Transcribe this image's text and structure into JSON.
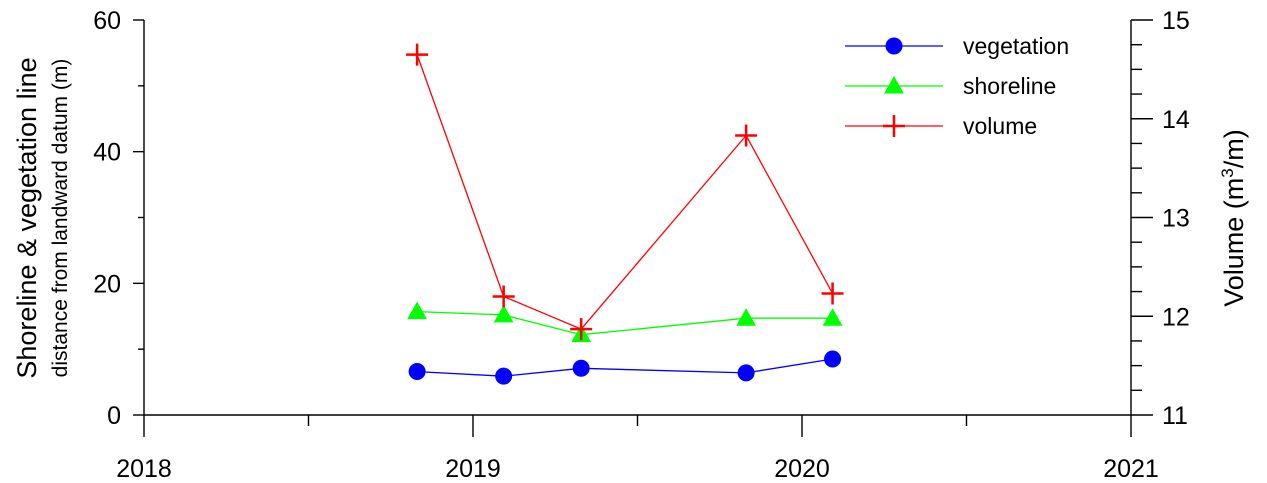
{
  "chart_data": {
    "type": "line",
    "x_axis": {
      "ticks": [
        2018,
        2019,
        2020,
        2021
      ],
      "minor_ticks": [
        2018.5,
        2019.5,
        2020.5
      ],
      "range": [
        2018,
        2021
      ]
    },
    "y_left": {
      "label": "Shoreline & vegetation line",
      "sublabel": "distance from landward datum (m)",
      "range": [
        0,
        60
      ],
      "ticks": [
        0,
        20,
        40,
        60
      ]
    },
    "y_right": {
      "label_prefix": "Volume (m",
      "label_sup": "3",
      "label_suffix": "/m)",
      "range": [
        11,
        15
      ],
      "ticks": [
        11,
        12,
        13,
        14,
        15
      ]
    },
    "legend_position": "top-right",
    "series": [
      {
        "name": "vegetation",
        "axis": "left",
        "color": "#0000ff",
        "marker": "circle",
        "x": [
          "2018-10-31",
          "2019-02-04",
          "2019-05-01",
          "2019-10-31",
          "2020-02-04"
        ],
        "y": [
          6.6,
          5.9,
          7.1,
          6.4,
          8.5
        ]
      },
      {
        "name": "shoreline",
        "axis": "left",
        "color": "#00ff00",
        "marker": "triangle",
        "x": [
          "2018-10-31",
          "2019-02-04",
          "2019-05-01",
          "2019-10-31",
          "2020-02-04"
        ],
        "y": [
          15.7,
          15.2,
          12.2,
          14.7,
          14.7
        ]
      },
      {
        "name": "volume",
        "axis": "right",
        "color": "#ff0000",
        "marker": "plus",
        "x": [
          "2018-10-31",
          "2019-02-04",
          "2019-05-01",
          "2019-10-31",
          "2020-02-04"
        ],
        "y": [
          14.65,
          12.2,
          11.87,
          13.83,
          12.23
        ]
      }
    ]
  }
}
